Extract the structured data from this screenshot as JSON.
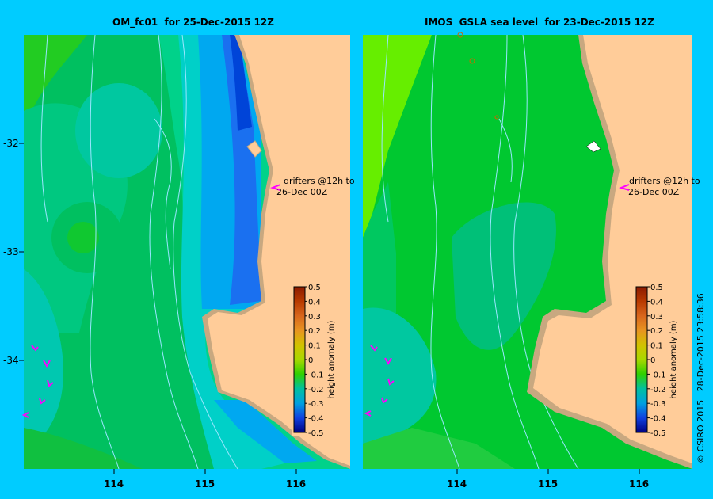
{
  "panels": [
    {
      "title": "OM_fc01  for 25-Dec-2015 12Z",
      "drifter_text": [
        "drifters @12h to",
        "26-Dec 00Z"
      ]
    },
    {
      "title": "IMOS  GSLA sea level  for 23-Dec-2015 12Z",
      "drifter_text": [
        "drifters @12h to",
        "26-Dec 00Z"
      ]
    }
  ],
  "lat_labels": [
    "-32",
    "-33",
    "-34"
  ],
  "lon_labels": [
    "114",
    "115",
    "116"
  ],
  "colorbar": {
    "label": "height anomaly (m)",
    "ticks": [
      "0.5",
      "0.4",
      "0.3",
      "0.2",
      "0.1",
      "0",
      "-0.1",
      "-0.2",
      "-0.3",
      "-0.4",
      "-0.5"
    ],
    "colors": [
      "#8b1a00",
      "#b83a00",
      "#d8661c",
      "#e89420",
      "#d2c200",
      "#a8d800",
      "#30d000",
      "#00c0a0",
      "#00a0e0",
      "#1040e0",
      "#000080"
    ]
  },
  "copyright": "© CSIRO 2015   28-Dec-2015 23:58:36",
  "colors": {
    "frame": "#00ccff",
    "land": "#ffcc99",
    "coast": "#c8a880",
    "drifter": "#ff00ff",
    "contour": "#99e6ff"
  }
}
